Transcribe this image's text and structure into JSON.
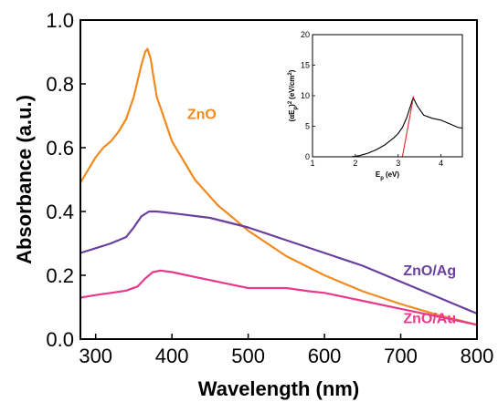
{
  "chart_data": [
    {
      "type": "line",
      "xlabel": "Wavelength (nm)",
      "ylabel": "Absorbance (a.u.)",
      "xlim": [
        280,
        800
      ],
      "ylim": [
        0.0,
        1.0
      ],
      "xticks": [
        300,
        400,
        500,
        600,
        700,
        800
      ],
      "xtick_labels": [
        "300",
        "400",
        "500",
        "600",
        "700",
        "800"
      ],
      "yticks": [
        0.0,
        0.2,
        0.4,
        0.6,
        0.8,
        1.0
      ],
      "ytick_labels": [
        "0.0",
        "0.2",
        "0.4",
        "0.6",
        "0.8",
        "1.0"
      ],
      "grid": false,
      "legend": "inline labels",
      "series": [
        {
          "name": "ZnO",
          "color": "#F28A1E",
          "label_anchor": [
            420,
            0.69
          ],
          "x": [
            280,
            290,
            300,
            310,
            320,
            330,
            340,
            350,
            360,
            365,
            368,
            372,
            380,
            400,
            430,
            460,
            500,
            550,
            600,
            650,
            700,
            750,
            800
          ],
          "y": [
            0.49,
            0.53,
            0.57,
            0.6,
            0.62,
            0.65,
            0.69,
            0.76,
            0.86,
            0.9,
            0.91,
            0.88,
            0.76,
            0.62,
            0.5,
            0.42,
            0.34,
            0.26,
            0.2,
            0.15,
            0.11,
            0.075,
            0.045
          ]
        },
        {
          "name": "ZnO/Ag",
          "color": "#6A3FA0",
          "label_anchor": [
            738,
            0.2
          ],
          "x": [
            280,
            300,
            320,
            340,
            350,
            360,
            370,
            380,
            400,
            450,
            500,
            550,
            600,
            650,
            700,
            750,
            800
          ],
          "y": [
            0.27,
            0.285,
            0.3,
            0.32,
            0.35,
            0.385,
            0.4,
            0.4,
            0.395,
            0.38,
            0.35,
            0.31,
            0.27,
            0.23,
            0.18,
            0.13,
            0.08
          ]
        },
        {
          "name": "ZnO/Au",
          "color": "#E8398A",
          "label_anchor": [
            738,
            0.05
          ],
          "x": [
            280,
            300,
            320,
            340,
            355,
            365,
            375,
            385,
            400,
            430,
            470,
            500,
            550,
            580,
            600,
            650,
            700,
            750,
            800
          ],
          "y": [
            0.13,
            0.138,
            0.145,
            0.152,
            0.165,
            0.19,
            0.21,
            0.215,
            0.21,
            0.195,
            0.175,
            0.16,
            0.16,
            0.15,
            0.145,
            0.12,
            0.095,
            0.07,
            0.045
          ]
        }
      ]
    },
    {
      "type": "line",
      "position": "inset top-right",
      "xlabel": "E_p (eV)",
      "ylabel": "(αE_p)^2 (eV/cm^2)",
      "xlabel_main": "E",
      "xlabel_sub": "p",
      "xlabel_unit": "(eV)",
      "ylabel_text": "(αE",
      "ylabel_sub": "p",
      "ylabel_rest": ")",
      "ylabel_sup": "2",
      "ylabel_unit": "(eV/cm",
      "ylabel_unit_sup": "2",
      "ylabel_unit_end": ")",
      "xlim": [
        1,
        4.5
      ],
      "ylim": [
        0,
        20
      ],
      "xticks": [
        1,
        2,
        3,
        4
      ],
      "xtick_labels": [
        "1",
        "2",
        "3",
        "4"
      ],
      "yticks": [
        0,
        5,
        10,
        15,
        20
      ],
      "ytick_labels": [
        "0",
        "5",
        "10",
        "15",
        "20"
      ],
      "series": [
        {
          "name": "",
          "color": "#000000",
          "x": [
            1.9,
            2.1,
            2.3,
            2.5,
            2.7,
            2.9,
            3.0,
            3.1,
            3.2,
            3.3,
            3.35,
            3.45,
            3.6,
            3.8,
            4.0,
            4.2,
            4.4,
            4.5
          ],
          "y": [
            0.0,
            0.2,
            0.6,
            1.2,
            2.0,
            3.1,
            3.8,
            4.8,
            6.4,
            8.6,
            9.7,
            8.3,
            6.8,
            6.3,
            6.0,
            5.4,
            4.8,
            4.7
          ]
        },
        {
          "name": "",
          "color": "#E0262B",
          "role": "linear fit",
          "x": [
            3.1,
            3.36
          ],
          "y": [
            0.0,
            9.9
          ]
        }
      ]
    }
  ]
}
